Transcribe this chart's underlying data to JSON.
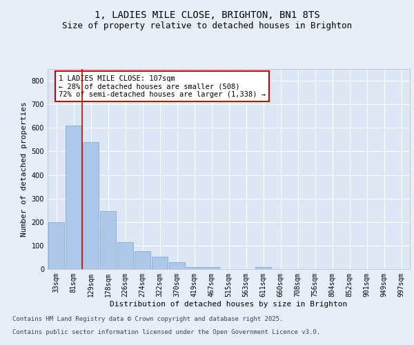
{
  "title_line1": "1, LADIES MILE CLOSE, BRIGHTON, BN1 8TS",
  "title_line2": "Size of property relative to detached houses in Brighton",
  "xlabel": "Distribution of detached houses by size in Brighton",
  "ylabel": "Number of detached properties",
  "bar_labels": [
    "33sqm",
    "81sqm",
    "129sqm",
    "178sqm",
    "226sqm",
    "274sqm",
    "322sqm",
    "370sqm",
    "419sqm",
    "467sqm",
    "515sqm",
    "563sqm",
    "611sqm",
    "660sqm",
    "708sqm",
    "756sqm",
    "804sqm",
    "852sqm",
    "901sqm",
    "949sqm",
    "997sqm"
  ],
  "bar_values": [
    200,
    610,
    540,
    245,
    115,
    75,
    52,
    30,
    10,
    8,
    0,
    0,
    8,
    0,
    0,
    0,
    0,
    0,
    0,
    0,
    0
  ],
  "bar_color": "#aec6e8",
  "bar_edge_color": "#7aafd4",
  "bg_color": "#e8eef8",
  "plot_bg_color": "#dce6f5",
  "grid_color": "#ffffff",
  "vline_color": "#cc0000",
  "annotation_text": "1 LADIES MILE CLOSE: 107sqm\n← 28% of detached houses are smaller (508)\n72% of semi-detached houses are larger (1,338) →",
  "annotation_box_color": "#cc0000",
  "ylim": [
    0,
    850
  ],
  "yticks": [
    0,
    100,
    200,
    300,
    400,
    500,
    600,
    700,
    800
  ],
  "footer_line1": "Contains HM Land Registry data © Crown copyright and database right 2025.",
  "footer_line2": "Contains public sector information licensed under the Open Government Licence v3.0.",
  "title_fontsize": 10,
  "subtitle_fontsize": 9,
  "axis_label_fontsize": 8,
  "tick_fontsize": 7,
  "annotation_fontsize": 7.5,
  "footer_fontsize": 6.5
}
